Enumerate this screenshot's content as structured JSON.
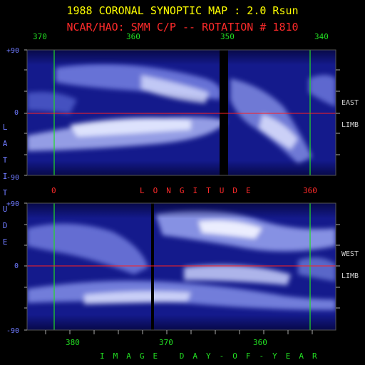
{
  "header": {
    "title": "1988 CORONAL SYNOPTIC MAP : 2.0 Rsun",
    "subtitle": "NCAR/HAO: SMM C/P -- ROTATION # 1810"
  },
  "top_panel": {
    "x_ticks": [
      "370",
      "360",
      "350",
      "340"
    ],
    "y_ticks": [
      "+90",
      "0",
      "-90"
    ],
    "side_label_1": "EAST",
    "side_label_2": "LIMB"
  },
  "middle_axis": {
    "tick_left": "0",
    "tick_right": "360",
    "label": "LONGITUDE"
  },
  "bottom_panel": {
    "y_ticks": [
      "+90",
      "0",
      "-90"
    ],
    "side_label_1": "WEST",
    "side_label_2": "LIMB",
    "x_ticks": [
      "380",
      "370",
      "360"
    ],
    "x_label": "IMAGE DAY-OF-YEAR"
  },
  "vertical_label": "LATITUDE",
  "colors": {
    "title": "#ffff00",
    "subtitle": "#ff2a2a",
    "axis_green": "#22dd22",
    "axis_blue": "#6f7bff",
    "equator": "#ff2020",
    "map_dark": "#0b0d66",
    "map_bright": "#e8ecff"
  }
}
